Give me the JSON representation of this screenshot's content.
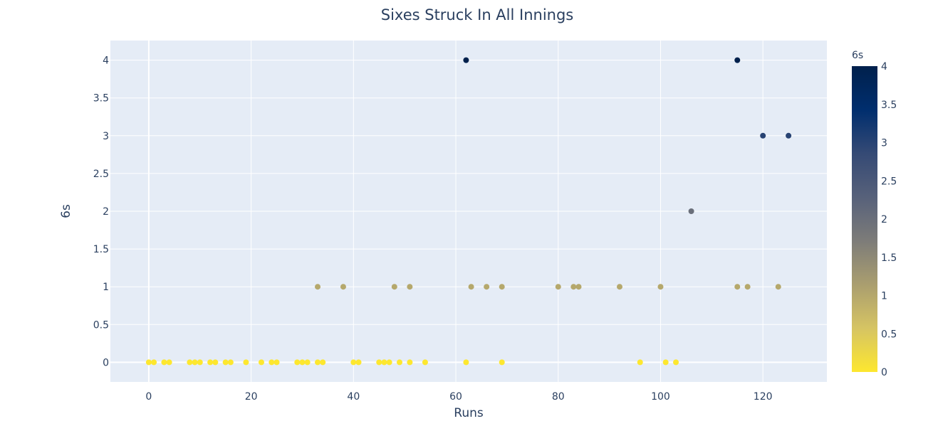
{
  "chart_data": {
    "type": "scatter",
    "title": "Sixes Struck In All Innings",
    "xlabel": "Runs",
    "ylabel": "6s",
    "xlim": [
      -7.5,
      132.5
    ],
    "ylim": [
      -0.26,
      4.26
    ],
    "x_ticks": [
      0,
      20,
      40,
      60,
      80,
      100,
      120
    ],
    "y_ticks": [
      0,
      0.5,
      1,
      1.5,
      2,
      2.5,
      3,
      3.5,
      4
    ],
    "grid": true,
    "colorbar": {
      "title": "6s",
      "min": 0,
      "max": 4,
      "ticks": [
        0,
        0.5,
        1,
        1.5,
        2,
        2.5,
        3,
        3.5,
        4
      ],
      "colorscale": [
        "#fde72f",
        "#d6c463",
        "#aa9e6f",
        "#7d7c79",
        "#57617a",
        "#354a75",
        "#002e6e",
        "#00204c"
      ]
    },
    "points": [
      {
        "x": 0,
        "y": 0
      },
      {
        "x": 1,
        "y": 0
      },
      {
        "x": 3,
        "y": 0
      },
      {
        "x": 4,
        "y": 0
      },
      {
        "x": 8,
        "y": 0
      },
      {
        "x": 9,
        "y": 0
      },
      {
        "x": 10,
        "y": 0
      },
      {
        "x": 12,
        "y": 0
      },
      {
        "x": 13,
        "y": 0
      },
      {
        "x": 15,
        "y": 0
      },
      {
        "x": 16,
        "y": 0
      },
      {
        "x": 19,
        "y": 0
      },
      {
        "x": 22,
        "y": 0
      },
      {
        "x": 24,
        "y": 0
      },
      {
        "x": 25,
        "y": 0
      },
      {
        "x": 29,
        "y": 0
      },
      {
        "x": 30,
        "y": 0
      },
      {
        "x": 31,
        "y": 0
      },
      {
        "x": 33,
        "y": 0
      },
      {
        "x": 34,
        "y": 0
      },
      {
        "x": 40,
        "y": 0
      },
      {
        "x": 41,
        "y": 0
      },
      {
        "x": 45,
        "y": 0
      },
      {
        "x": 46,
        "y": 0
      },
      {
        "x": 47,
        "y": 0
      },
      {
        "x": 49,
        "y": 0
      },
      {
        "x": 51,
        "y": 0
      },
      {
        "x": 54,
        "y": 0
      },
      {
        "x": 62,
        "y": 0
      },
      {
        "x": 69,
        "y": 0
      },
      {
        "x": 96,
        "y": 0
      },
      {
        "x": 101,
        "y": 0
      },
      {
        "x": 103,
        "y": 0
      },
      {
        "x": 33,
        "y": 1
      },
      {
        "x": 38,
        "y": 1
      },
      {
        "x": 48,
        "y": 1
      },
      {
        "x": 51,
        "y": 1
      },
      {
        "x": 63,
        "y": 1
      },
      {
        "x": 66,
        "y": 1
      },
      {
        "x": 69,
        "y": 1
      },
      {
        "x": 80,
        "y": 1
      },
      {
        "x": 83,
        "y": 1
      },
      {
        "x": 84,
        "y": 1
      },
      {
        "x": 92,
        "y": 1
      },
      {
        "x": 100,
        "y": 1
      },
      {
        "x": 115,
        "y": 1
      },
      {
        "x": 117,
        "y": 1
      },
      {
        "x": 123,
        "y": 1
      },
      {
        "x": 106,
        "y": 2
      },
      {
        "x": 120,
        "y": 3
      },
      {
        "x": 125,
        "y": 3
      },
      {
        "x": 62,
        "y": 4
      },
      {
        "x": 115,
        "y": 4
      }
    ]
  }
}
